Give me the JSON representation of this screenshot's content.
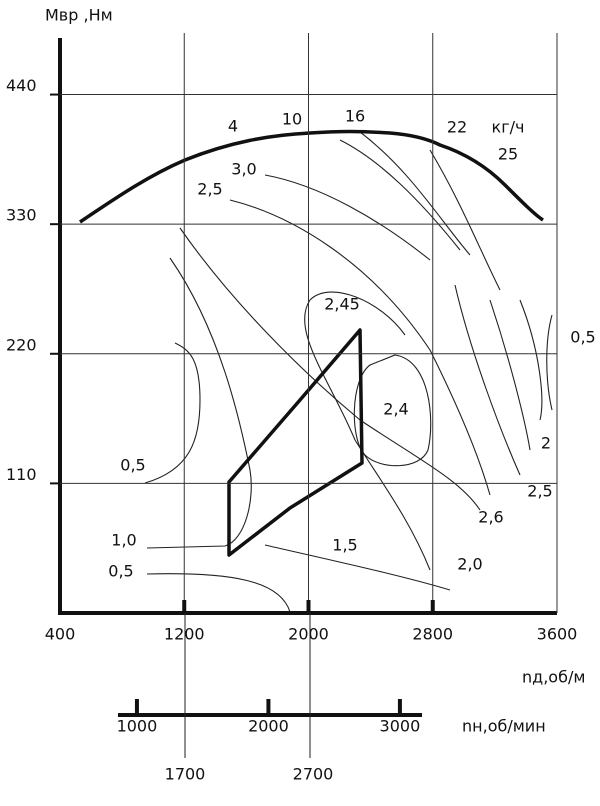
{
  "chart_data": {
    "type": "contour",
    "y_label": "Мвр ,Нм",
    "x_label": "nд,об/м",
    "x2_label": "nн,об/мин",
    "xlim": [
      400,
      3600
    ],
    "xticks": [
      400,
      1200,
      2000,
      2800,
      3600
    ],
    "ylim": [
      0,
      488
    ],
    "yticks": [
      110,
      220,
      330,
      440
    ],
    "x2lim": [
      856,
      3168
    ],
    "x2ticks": [
      1000,
      2000,
      3000
    ],
    "grid": true,
    "annotations": [
      "4",
      "10",
      "16",
      "22",
      "кг/ч",
      "25",
      "3,0",
      "2,5",
      "2,45",
      "2,4",
      "0,5",
      "2",
      "2,5",
      "2,6",
      "2,0",
      "1,5",
      "1,0",
      "0,5",
      "0,5",
      "1700",
      "2700"
    ]
  }
}
